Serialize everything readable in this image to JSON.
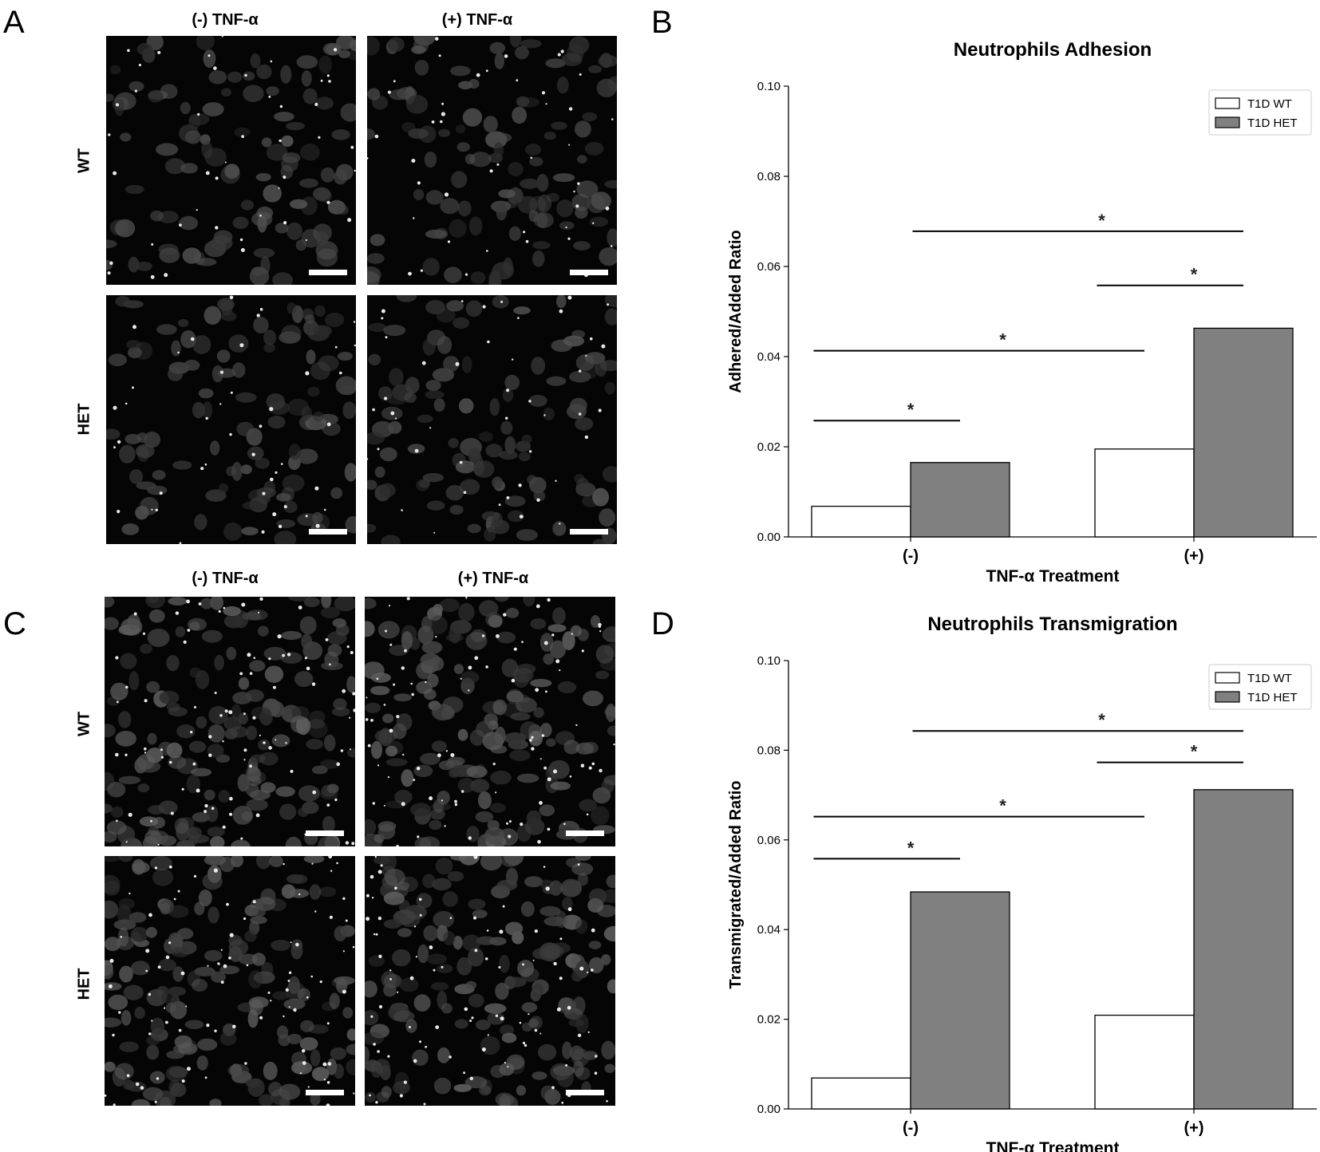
{
  "figure": {
    "panels": {
      "a": "A",
      "b": "B",
      "c": "C",
      "d": "D"
    },
    "micro_columns": [
      "(-) TNF-α",
      "(+) TNF-α"
    ],
    "micro_rows": [
      "WT",
      "HET"
    ]
  },
  "colors": {
    "wt_fill": "#ffffff",
    "het_fill": "#808080",
    "bar_stroke": "#000000"
  },
  "chart_data": [
    {
      "type": "bar",
      "title": "Neutrophils Adhesion",
      "xlabel": "TNF-α Treatment",
      "ylabel": "Adhered/Added Ratio",
      "categories": [
        "(-)",
        "(+)"
      ],
      "series": [
        {
          "name": "T1D WT",
          "values": [
            0.0068,
            0.0195
          ]
        },
        {
          "name": "T1D HET",
          "values": [
            0.0165,
            0.0463
          ]
        }
      ],
      "ylim": [
        0,
        0.1
      ],
      "yticks": [
        "0.00",
        "0.02",
        "0.04",
        "0.06",
        "0.08",
        "0.10"
      ],
      "legend": "top-right",
      "significance": [
        {
          "label": "*",
          "from": [
            0,
            0
          ],
          "to": [
            0,
            1
          ],
          "y": 0.0258
        },
        {
          "label": "*",
          "from": [
            0,
            0
          ],
          "to": [
            1,
            0
          ],
          "y": 0.0413
        },
        {
          "label": "*",
          "from": [
            1,
            0
          ],
          "to": [
            1,
            1
          ],
          "y": 0.0558
        },
        {
          "label": "*",
          "from": [
            0,
            1
          ],
          "to": [
            1,
            1
          ],
          "y": 0.0678
        }
      ]
    },
    {
      "type": "bar",
      "title": "Neutrophils Transmigration",
      "xlabel": "TNF-α Treatment",
      "ylabel": "Transmigrated/Added Ratio",
      "categories": [
        "(-)",
        "(+)"
      ],
      "series": [
        {
          "name": "T1D WT",
          "values": [
            0.0069,
            0.0209
          ]
        },
        {
          "name": "T1D HET",
          "values": [
            0.0484,
            0.0712
          ]
        }
      ],
      "ylim": [
        0,
        0.1
      ],
      "yticks": [
        "0.00",
        "0.02",
        "0.04",
        "0.06",
        "0.08",
        "0.10"
      ],
      "legend": "top-right",
      "significance": [
        {
          "label": "*",
          "from": [
            0,
            0
          ],
          "to": [
            0,
            1
          ],
          "y": 0.0558
        },
        {
          "label": "*",
          "from": [
            0,
            0
          ],
          "to": [
            1,
            0
          ],
          "y": 0.0652
        },
        {
          "label": "*",
          "from": [
            1,
            0
          ],
          "to": [
            1,
            1
          ],
          "y": 0.0773
        },
        {
          "label": "*",
          "from": [
            0,
            1
          ],
          "to": [
            1,
            1
          ],
          "y": 0.0843
        }
      ]
    }
  ]
}
